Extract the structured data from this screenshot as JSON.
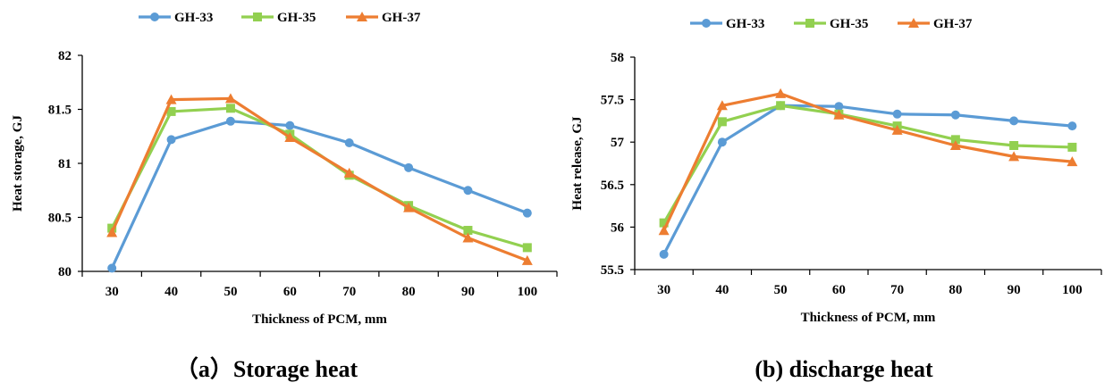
{
  "chart_data": [
    {
      "type": "line",
      "caption": "（a）Storage heat",
      "xlabel": "Thickness of PCM, mm",
      "ylabel": "Heat storage, GJ",
      "x": [
        30,
        40,
        50,
        60,
        70,
        80,
        90,
        100
      ],
      "ylim": [
        80,
        82
      ],
      "yticks": [
        80,
        80.5,
        81,
        81.5,
        82
      ],
      "ytick_labels": [
        "80",
        "80.5",
        "81",
        "81.5",
        "82"
      ],
      "legend_position": "top",
      "grid": false,
      "series": [
        {
          "name": "GH-33",
          "marker": "circle",
          "color": "#5B9BD5",
          "values": [
            80.03,
            81.22,
            81.39,
            81.35,
            81.19,
            80.96,
            80.75,
            80.54
          ]
        },
        {
          "name": "GH-35",
          "marker": "square",
          "color": "#92D050",
          "values": [
            80.4,
            81.48,
            81.51,
            81.27,
            80.89,
            80.61,
            80.38,
            80.22
          ]
        },
        {
          "name": "GH-37",
          "marker": "triangle",
          "color": "#ED7D31",
          "values": [
            80.36,
            81.59,
            81.6,
            81.24,
            80.91,
            80.59,
            80.31,
            80.1
          ]
        }
      ]
    },
    {
      "type": "line",
      "caption": "(b) discharge heat",
      "xlabel": "Thickness of PCM, mm",
      "ylabel": "Heat release, GJ",
      "x": [
        30,
        40,
        50,
        60,
        70,
        80,
        90,
        100
      ],
      "ylim": [
        55.5,
        58
      ],
      "yticks": [
        55.5,
        56,
        56.5,
        57,
        57.5,
        58
      ],
      "ytick_labels": [
        "55.5",
        "56",
        "56.5",
        "57",
        "57.5",
        "58"
      ],
      "legend_position": "top",
      "grid": false,
      "series": [
        {
          "name": "GH-33",
          "marker": "circle",
          "color": "#5B9BD5",
          "values": [
            55.68,
            57.0,
            57.43,
            57.42,
            57.33,
            57.32,
            57.25,
            57.19
          ]
        },
        {
          "name": "GH-35",
          "marker": "square",
          "color": "#92D050",
          "values": [
            56.05,
            57.24,
            57.43,
            57.33,
            57.19,
            57.03,
            56.96,
            56.94
          ]
        },
        {
          "name": "GH-37",
          "marker": "triangle",
          "color": "#ED7D31",
          "values": [
            55.96,
            57.43,
            57.57,
            57.32,
            57.14,
            56.96,
            56.83,
            56.77
          ]
        }
      ]
    }
  ]
}
